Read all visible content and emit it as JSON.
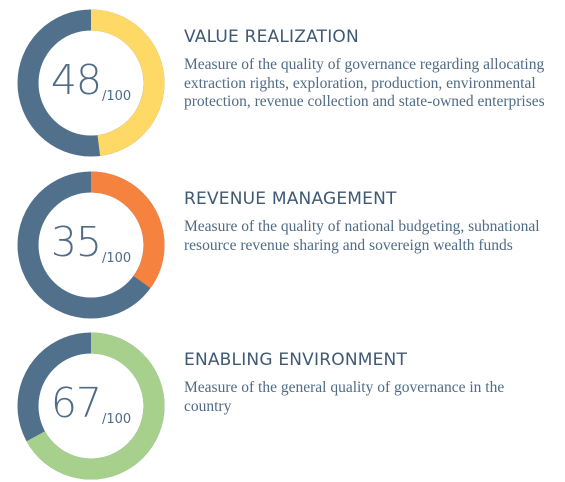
{
  "colors": {
    "base_ring": "#50708c",
    "text_title": "#3f5973",
    "text_body": "#4f6b86"
  },
  "chart_data": [
    {
      "type": "pie",
      "title": "VALUE REALIZATION",
      "value": 48,
      "max_label": "/100",
      "max": 100,
      "accent": "#ffd966",
      "description": "Measure of the quality of governance regarding allocating extraction rights, exploration, production, environmental protection, revenue collection and state-owned enterprises"
    },
    {
      "type": "pie",
      "title": "REVENUE MANAGEMENT",
      "value": 35,
      "max_label": "/100",
      "max": 100,
      "accent": "#f5823e",
      "description": "Measure of the quality of national budgeting, subnational resource revenue sharing and sovereign wealth funds"
    },
    {
      "type": "pie",
      "title": "ENABLING ENVIRONMENT",
      "value": 67,
      "max_label": "/100",
      "max": 100,
      "accent": "#a8d08d",
      "description": "Measure of the general quality of governance in the country"
    }
  ]
}
